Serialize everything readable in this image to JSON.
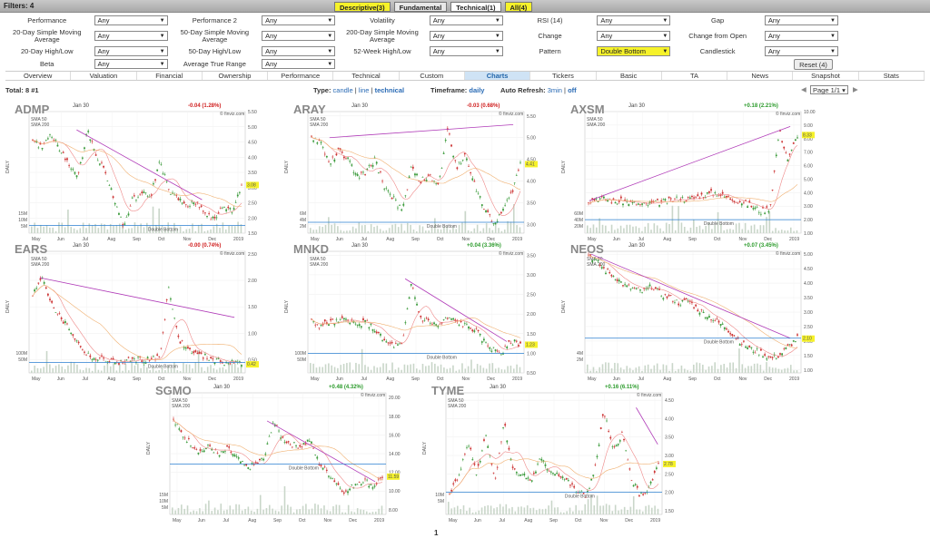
{
  "filters": {
    "title": "Filters: 4",
    "tabs": [
      {
        "label": "Descriptive(3)",
        "style": "y"
      },
      {
        "label": "Fundamental",
        "style": ""
      },
      {
        "label": "Technical(1)",
        "style": "act"
      },
      {
        "label": "All(4)",
        "style": "y"
      }
    ],
    "rows": [
      [
        {
          "label": "Performance",
          "value": "Any"
        },
        {
          "label": "Performance 2",
          "value": "Any"
        },
        {
          "label": "Volatility",
          "value": "Any"
        },
        {
          "label": "RSI (14)",
          "value": "Any"
        },
        {
          "label": "Gap",
          "value": "Any"
        }
      ],
      [
        {
          "label": "20-Day Simple Moving Average",
          "value": "Any"
        },
        {
          "label": "50-Day Simple Moving Average",
          "value": "Any"
        },
        {
          "label": "200-Day Simple Moving Average",
          "value": "Any"
        },
        {
          "label": "Change",
          "value": "Any"
        },
        {
          "label": "Change from Open",
          "value": "Any"
        }
      ],
      [
        {
          "label": "20-Day High/Low",
          "value": "Any"
        },
        {
          "label": "50-Day High/Low",
          "value": "Any"
        },
        {
          "label": "52-Week High/Low",
          "value": "Any"
        },
        {
          "label": "Pattern",
          "value": "Double Bottom",
          "highlight": true
        },
        {
          "label": "Candlestick",
          "value": "Any"
        }
      ],
      [
        {
          "label": "Beta",
          "value": "Any"
        },
        {
          "label": "Average True Range",
          "value": "Any"
        }
      ]
    ],
    "reset_label": "Reset (4)"
  },
  "nav": {
    "items": [
      "Overview",
      "Valuation",
      "Financial",
      "Ownership",
      "Performance",
      "Technical",
      "Custom",
      "Charts",
      "Tickers",
      "Basic",
      "TA",
      "News",
      "Snapshot",
      "Stats"
    ],
    "active": "Charts"
  },
  "info": {
    "total": "Total: 8 #1",
    "type_label": "Type:",
    "type_candle": "candle",
    "type_line": "line",
    "type_technical": "technical",
    "timeframe_label": "Timeframe:",
    "timeframe_value": "daily",
    "refresh_label": "Auto Refresh:",
    "refresh_3min": "3min",
    "refresh_off": "off",
    "page_select": "Page 1/1"
  },
  "charts": [
    {
      "ticker": "ADMP",
      "date": "Jan 30",
      "change": "-0.04 (1.28%)",
      "direction": "down",
      "price": "3.08",
      "yticks": [
        "5.50",
        "5.00",
        "4.50",
        "4.00",
        "3.50",
        "3.00",
        "2.50",
        "2.00",
        "1.50"
      ],
      "ymin": 1.5,
      "ymax": 5.5,
      "xticks": [
        "May",
        "Jun",
        "Jul",
        "Aug",
        "Sep",
        "Oct",
        "Nov",
        "Dec",
        "2019"
      ],
      "vol": [
        "15M",
        "10M",
        "5M"
      ],
      "pattern": "Double Bottom",
      "seed": 1,
      "path": [
        4.6,
        4.3,
        4.8,
        4.2,
        3.8,
        3.3,
        4.9,
        4.1,
        3.5,
        2.6,
        1.7,
        2.6,
        2.8,
        2.7,
        3.9,
        2.9,
        2.6,
        2.4,
        2.5,
        2.2,
        1.9,
        2.4,
        2.2,
        3.1
      ],
      "trend": [
        [
          0.22,
          4.9
        ],
        [
          0.8,
          2.6
        ]
      ],
      "support": 1.75
    },
    {
      "ticker": "ARAY",
      "date": "Jan 30",
      "change": "-0.03 (0.68%)",
      "direction": "down",
      "price": "4.41",
      "yticks": [
        "5.50",
        "5.00",
        "4.50",
        "4.00",
        "3.50",
        "3.00"
      ],
      "ymin": 2.8,
      "ymax": 5.6,
      "xticks": [
        "May",
        "Jun",
        "Jul",
        "Aug",
        "Sep",
        "Oct",
        "Nov",
        "Dec",
        "2019"
      ],
      "vol": [
        "6M",
        "4M",
        "2M"
      ],
      "pattern": "Double Bottom",
      "seed": 2,
      "path": [
        5.0,
        4.9,
        4.4,
        4.7,
        4.5,
        4.1,
        4.2,
        4.5,
        3.9,
        3.6,
        3.3,
        4.3,
        4.0,
        4.1,
        3.9,
        5.2,
        4.3,
        4.6,
        3.9,
        3.4,
        3.0,
        3.3,
        3.7,
        4.4
      ],
      "trend": [
        [
          0.1,
          5.0
        ],
        [
          0.95,
          5.3
        ]
      ],
      "support": 3.05
    },
    {
      "ticker": "AXSM",
      "date": "Jan 30",
      "change": "+0.18 (2.21%)",
      "direction": "up",
      "price": "8.33",
      "yticks": [
        "10.00",
        "9.00",
        "8.00",
        "7.00",
        "6.00",
        "5.00",
        "4.00",
        "3.00",
        "2.00",
        "1.00"
      ],
      "ymin": 1.0,
      "ymax": 10.0,
      "xticks": [
        "May",
        "Jun",
        "Jul",
        "Aug",
        "Sep",
        "Oct",
        "Nov",
        "Dec",
        "2019"
      ],
      "vol": [
        "60M",
        "40M",
        "20M"
      ],
      "pattern": "Double Bottom",
      "seed": 3,
      "path": [
        3.4,
        3.6,
        3.5,
        3.3,
        3.4,
        3.2,
        3.1,
        3.2,
        3.3,
        3.4,
        3.6,
        3.5,
        3.7,
        3.9,
        4.0,
        3.7,
        3.5,
        3.3,
        3.0,
        2.6,
        2.9,
        8.6,
        6.4,
        8.3
      ],
      "trend": [
        [
          0.02,
          3.4
        ],
        [
          0.95,
          8.9
        ]
      ],
      "support": 2.0
    },
    {
      "ticker": "EARS",
      "date": "Jan 30",
      "change": "-0.00 (0.74%)",
      "direction": "down",
      "price": "0.42",
      "yticks": [
        "2.50",
        "2.00",
        "1.50",
        "1.00",
        "0.50"
      ],
      "ymin": 0.25,
      "ymax": 2.55,
      "xticks": [
        "May",
        "Jun",
        "Jul",
        "Aug",
        "Sep",
        "Oct",
        "Nov",
        "Dec",
        "2019"
      ],
      "vol": [
        "100M",
        "50M"
      ],
      "pattern": "Double Bottom",
      "seed": 4,
      "path": [
        1.7,
        2.1,
        1.6,
        1.3,
        1.1,
        0.8,
        0.6,
        0.5,
        0.5,
        0.45,
        0.45,
        0.5,
        0.5,
        0.5,
        0.55,
        1.9,
        0.9,
        0.7,
        0.6,
        0.55,
        0.5,
        0.45,
        0.45,
        0.42
      ],
      "trend": [
        [
          0.05,
          2.05
        ],
        [
          0.95,
          1.3
        ]
      ],
      "support": 0.45
    },
    {
      "ticker": "MNKD",
      "date": "Jan 30",
      "change": "+0.04 (3.36%)",
      "direction": "up",
      "price": "1.23",
      "yticks": [
        "3.50",
        "3.00",
        "2.50",
        "2.00",
        "1.50",
        "1.00",
        "0.50"
      ],
      "ymin": 0.5,
      "ymax": 3.6,
      "xticks": [
        "May",
        "Jun",
        "Jul",
        "Aug",
        "Sep",
        "Oct",
        "Nov",
        "Dec",
        "2019"
      ],
      "vol": [
        "100M",
        "50M"
      ],
      "pattern": "Double Bottom",
      "seed": 5,
      "path": [
        1.8,
        1.7,
        1.8,
        1.8,
        1.9,
        1.7,
        1.8,
        1.6,
        1.3,
        1.2,
        1.2,
        2.8,
        1.9,
        1.8,
        1.7,
        1.9,
        1.8,
        1.7,
        1.6,
        1.3,
        1.1,
        1.0,
        1.3,
        1.23
      ],
      "trend": [
        [
          0.45,
          2.9
        ],
        [
          0.92,
          1.3
        ]
      ],
      "support": 1.0
    },
    {
      "ticker": "NEOS",
      "date": "Jan 30",
      "change": "+0.07 (3.45%)",
      "direction": "up",
      "price": "2.10",
      "yticks": [
        "5.00",
        "4.50",
        "4.00",
        "3.50",
        "3.00",
        "2.50",
        "2.00",
        "1.50",
        "1.00"
      ],
      "ymin": 0.9,
      "ymax": 5.1,
      "xticks": [
        "May",
        "Jun",
        "Jul",
        "Aug",
        "Sep",
        "Oct",
        "Nov",
        "Dec",
        "2019"
      ],
      "vol": [
        "4M",
        "2M"
      ],
      "pattern": "Double Bottom",
      "seed": 6,
      "path": [
        5.0,
        4.7,
        4.4,
        4.2,
        3.9,
        3.8,
        3.7,
        3.9,
        3.6,
        3.5,
        3.3,
        3.4,
        3.1,
        2.9,
        2.7,
        2.5,
        2.2,
        1.9,
        1.7,
        1.6,
        1.4,
        1.5,
        1.8,
        2.1
      ],
      "trend": [
        [
          0.03,
          5.0
        ],
        [
          0.95,
          2.1
        ]
      ],
      "support": 2.1
    },
    {
      "ticker": "SGMO",
      "date": "Jan 30",
      "change": "+0.48 (4.32%)",
      "direction": "up",
      "price": "11.59",
      "yticks": [
        "20.00",
        "18.00",
        "16.00",
        "14.00",
        "12.00",
        "10.00",
        "8.00"
      ],
      "ymin": 7.5,
      "ymax": 20.5,
      "xticks": [
        "May",
        "Jun",
        "Jul",
        "Aug",
        "Sep",
        "Oct",
        "Nov",
        "Dec",
        "2019"
      ],
      "vol": [
        "15M",
        "10M",
        "5M"
      ],
      "pattern": "Double Bottom",
      "seed": 7,
      "path": [
        17.5,
        16.0,
        15.0,
        14.2,
        14.8,
        13.8,
        14.5,
        13.5,
        12.5,
        12.8,
        13.5,
        17.5,
        15.6,
        15.0,
        14.8,
        15.5,
        13.0,
        12.0,
        10.8,
        9.8,
        10.8,
        11.2,
        10.5,
        11.59
      ],
      "trend": [
        [
          0.45,
          17.5
        ],
        [
          0.95,
          11.0
        ]
      ],
      "support": 12.9
    },
    {
      "ticker": "TYME",
      "date": "Jan 30",
      "change": "+0.16 (6.11%)",
      "direction": "up",
      "price": "2.78",
      "yticks": [
        "4.50",
        "4.00",
        "3.50",
        "3.00",
        "2.50",
        "2.00",
        "1.50"
      ],
      "ymin": 1.4,
      "ymax": 4.7,
      "xticks": [
        "May",
        "Jun",
        "Jul",
        "Aug",
        "Sep",
        "Oct",
        "Nov",
        "Dec",
        "2019"
      ],
      "vol": [
        "10M",
        "5M"
      ],
      "pattern": "Double Bottom",
      "seed": 8,
      "path": [
        2.0,
        2.4,
        3.4,
        2.5,
        3.6,
        2.3,
        3.9,
        2.6,
        2.5,
        2.3,
        2.9,
        2.6,
        2.5,
        2.3,
        2.0,
        1.9,
        2.6,
        4.2,
        3.1,
        3.6,
        2.4,
        1.9,
        2.1,
        2.78
      ],
      "trend": [
        [
          0.88,
          4.3
        ],
        [
          0.98,
          3.3
        ]
      ],
      "support": 2.0
    }
  ],
  "pagination": "1"
}
